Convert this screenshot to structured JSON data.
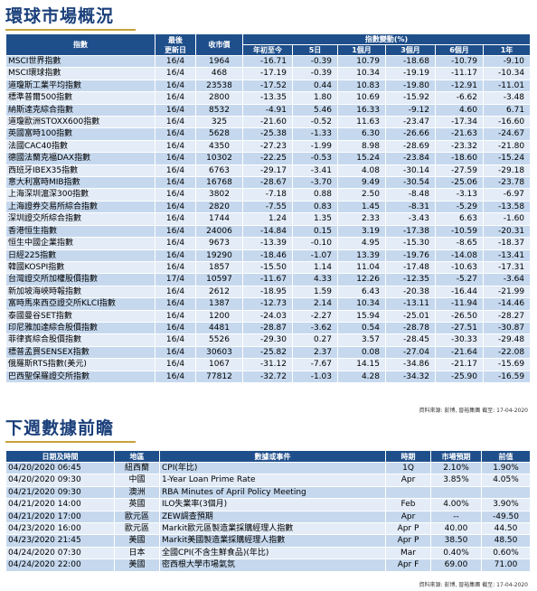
{
  "section1": {
    "title": "環球市場概況",
    "headers": {
      "index": "指數",
      "last_update": "最後\n更新日",
      "close": "收市價",
      "change_group": "指數變動(%)",
      "ytd": "年初至今",
      "d5": "5日",
      "m1": "1個月",
      "m3": "3個月",
      "m6": "6個月",
      "y1": "1年"
    },
    "rows": [
      [
        "MSCI世界指數",
        "16/4",
        "1964",
        "-16.71",
        "-0.39",
        "10.79",
        "-18.68",
        "-10.79",
        "-9.10"
      ],
      [
        "MSCI環球指數",
        "16/4",
        "468",
        "-17.19",
        "-0.39",
        "10.34",
        "-19.19",
        "-11.17",
        "-10.34"
      ],
      [
        "道瓊斯工業平均指數",
        "16/4",
        "23538",
        "-17.52",
        "0.44",
        "10.83",
        "-19.80",
        "-12.91",
        "-11.01"
      ],
      [
        "標準普爾500指數",
        "16/4",
        "2800",
        "-13.35",
        "1.80",
        "10.69",
        "-15.92",
        "-6.62",
        "-3.48"
      ],
      [
        "納斯達克綜合指數",
        "16/4",
        "8532",
        "-4.91",
        "5.46",
        "16.33",
        "-9.12",
        "4.60",
        "6.71"
      ],
      [
        "道瓊歐洲STOXX600指數",
        "16/4",
        "325",
        "-21.60",
        "-0.52",
        "11.63",
        "-23.47",
        "-17.34",
        "-16.60"
      ],
      [
        "英國富時100指數",
        "16/4",
        "5628",
        "-25.38",
        "-1.33",
        "6.30",
        "-26.66",
        "-21.63",
        "-24.67"
      ],
      [
        "法國CAC40指數",
        "16/4",
        "4350",
        "-27.23",
        "-1.99",
        "8.98",
        "-28.69",
        "-23.32",
        "-21.80"
      ],
      [
        "德國法蘭克福DAX指數",
        "16/4",
        "10302",
        "-22.25",
        "-0.53",
        "15.24",
        "-23.84",
        "-18.60",
        "-15.24"
      ],
      [
        "西班牙IBEX35指數",
        "16/4",
        "6763",
        "-29.17",
        "-3.41",
        "4.08",
        "-30.14",
        "-27.59",
        "-29.18"
      ],
      [
        "意大利富時MIB指數",
        "16/4",
        "16768",
        "-28.67",
        "-3.70",
        "9.49",
        "-30.54",
        "-25.06",
        "-23.78"
      ],
      [
        "上海深圳滬深300指數",
        "16/4",
        "3802",
        "-7.18",
        "0.88",
        "2.50",
        "-8.48",
        "-3.13",
        "-6.97"
      ],
      [
        "上海證券交易所綜合指數",
        "16/4",
        "2820",
        "-7.55",
        "0.83",
        "1.45",
        "-8.31",
        "-5.29",
        "-13.58"
      ],
      [
        "深圳證交所綜合指數",
        "16/4",
        "1744",
        "1.24",
        "1.35",
        "2.33",
        "-3.43",
        "6.63",
        "-1.60"
      ],
      [
        "香港恒生指數",
        "16/4",
        "24006",
        "-14.84",
        "0.15",
        "3.19",
        "-17.38",
        "-10.59",
        "-20.31"
      ],
      [
        "恒生中國企業指數",
        "16/4",
        "9673",
        "-13.39",
        "-0.10",
        "4.95",
        "-15.30",
        "-8.65",
        "-18.37"
      ],
      [
        "日經225指數",
        "16/4",
        "19290",
        "-18.46",
        "-1.07",
        "13.39",
        "-19.76",
        "-14.08",
        "-13.41"
      ],
      [
        "韓國KOSPI指數",
        "16/4",
        "1857",
        "-15.50",
        "1.14",
        "11.04",
        "-17.48",
        "-10.63",
        "-17.31"
      ],
      [
        "台灣證交所加權股價指數",
        "17/4",
        "10597",
        "-11.67",
        "4.33",
        "12.26",
        "-12.35",
        "-5.27",
        "-3.64"
      ],
      [
        "新加坡海峽時報指數",
        "16/4",
        "2612",
        "-18.95",
        "1.59",
        "6.43",
        "-20.38",
        "-16.44",
        "-21.99"
      ],
      [
        "富時馬來西亞證交所KLCI指數",
        "16/4",
        "1387",
        "-12.73",
        "2.14",
        "10.34",
        "-13.11",
        "-11.94",
        "-14.46"
      ],
      [
        "泰國曼谷SET指數",
        "16/4",
        "1200",
        "-24.03",
        "-2.27",
        "15.94",
        "-25.01",
        "-26.50",
        "-28.27"
      ],
      [
        "印尼雅加達綜合股價指數",
        "16/4",
        "4481",
        "-28.87",
        "-3.62",
        "0.54",
        "-28.78",
        "-27.51",
        "-30.87"
      ],
      [
        "菲律賓綜合股價指數",
        "16/4",
        "5526",
        "-29.30",
        "0.27",
        "3.57",
        "-28.45",
        "-30.33",
        "-29.48"
      ],
      [
        "標普孟買SENSEX指數",
        "16/4",
        "30603",
        "-25.82",
        "2.37",
        "0.08",
        "-27.04",
        "-21.64",
        "-22.08"
      ],
      [
        "俄羅斯RTS指數(美元)",
        "16/4",
        "1067",
        "-31.12",
        "-7.67",
        "14.15",
        "-34.86",
        "-21.17",
        "-15.69"
      ],
      [
        "巴西聖保羅證交所指數",
        "16/4",
        "77812",
        "-32.72",
        "-1.03",
        "4.28",
        "-34.32",
        "-25.90",
        "-16.59"
      ]
    ],
    "source": "資料來源: 彭博, 晉裕集團 截至: 17-04-2020"
  },
  "section2": {
    "title": "下週數據前瞻",
    "headers": {
      "datetime": "日期及時間",
      "region": "地區",
      "event": "數據或事件",
      "period": "時期",
      "forecast": "市場預期",
      "previous": "前值"
    },
    "rows": [
      [
        "04/20/2020 06:45",
        "紐西蘭",
        "CPI(年比)",
        "1Q",
        "2.10%",
        "1.90%"
      ],
      [
        "04/20/2020 09:30",
        "中國",
        "1-Year Loan Prime Rate",
        "Apr",
        "3.85%",
        "4.05%"
      ],
      [
        "04/21/2020 09:30",
        "澳洲",
        "RBA Minutes of April Policy Meeting",
        "",
        "",
        ""
      ],
      [
        "04/21/2020 14:00",
        "英國",
        "ILO失業率(3個月)",
        "Feb",
        "4.00%",
        "3.90%"
      ],
      [
        "04/21/2020 17:00",
        "歐元區",
        "ZEW調查預期",
        "Apr",
        "--",
        "-49.50"
      ],
      [
        "04/23/2020 16:00",
        "歐元區",
        "Markit歐元區製造業採購經理人指數",
        "Apr P",
        "40.00",
        "44.50"
      ],
      [
        "04/23/2020 21:45",
        "美國",
        "Markit美國製造業採購經理人指數",
        "Apr P",
        "38.50",
        "48.50"
      ],
      [
        "04/24/2020 07:30",
        "日本",
        "全國CPI(不含生鮮食品)(年比)",
        "Mar",
        "0.40%",
        "0.60%"
      ],
      [
        "04/24/2020 22:00",
        "美國",
        "密西根大學市場氣氛",
        "Apr F",
        "69.00",
        "71.00"
      ]
    ],
    "source": "資料來源: 彭博, 晉裕集團 截至: 17-04-2020"
  }
}
